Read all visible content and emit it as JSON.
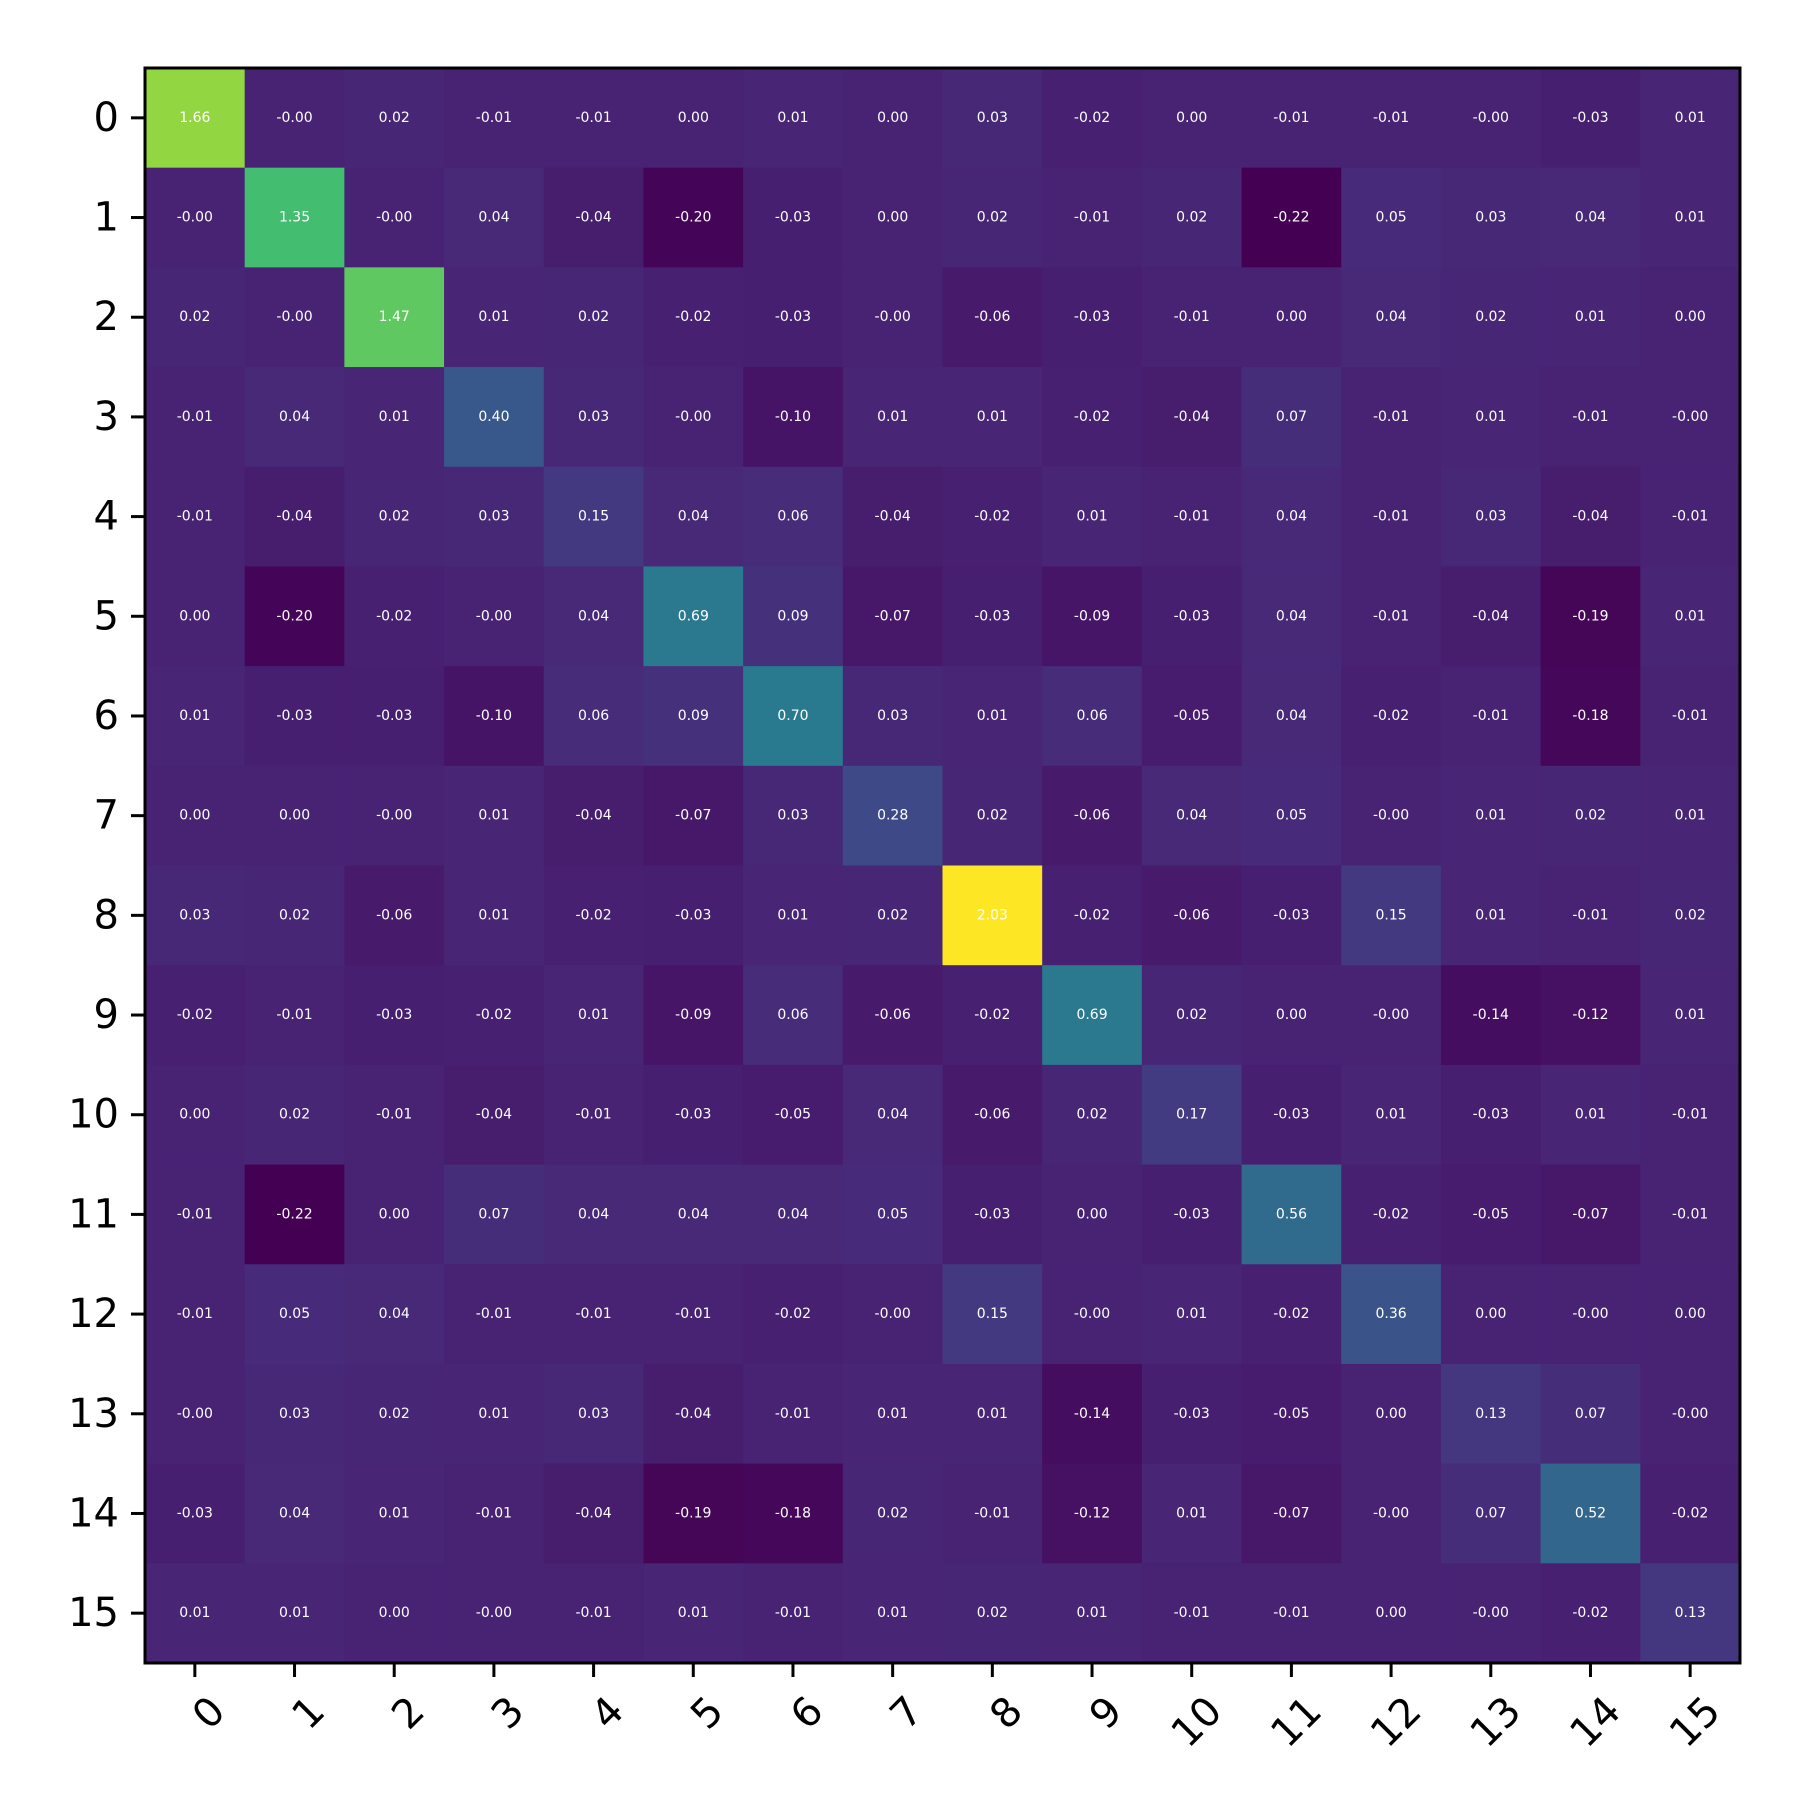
{
  "chart_data": {
    "type": "heatmap",
    "title": "",
    "xlabel": "",
    "ylabel": "",
    "colormap": "viridis",
    "color_range": [
      -0.22,
      2.03
    ],
    "x_labels": [
      "0",
      "1",
      "2",
      "3",
      "4",
      "5",
      "6",
      "7",
      "8",
      "9",
      "10",
      "11",
      "12",
      "13",
      "14",
      "15"
    ],
    "y_labels": [
      "0",
      "1",
      "2",
      "3",
      "4",
      "5",
      "6",
      "7",
      "8",
      "9",
      "10",
      "11",
      "12",
      "13",
      "14",
      "15"
    ],
    "values": [
      [
        1.66,
        -0.0,
        0.02,
        -0.01,
        -0.01,
        0.0,
        0.01,
        0.0,
        0.03,
        -0.02,
        0.0,
        -0.01,
        -0.01,
        -0.0,
        -0.03,
        0.01
      ],
      [
        -0.0,
        1.35,
        -0.0,
        0.04,
        -0.04,
        -0.2,
        -0.03,
        0.0,
        0.02,
        -0.01,
        0.02,
        -0.22,
        0.05,
        0.03,
        0.04,
        0.01
      ],
      [
        0.02,
        -0.0,
        1.47,
        0.01,
        0.02,
        -0.02,
        -0.03,
        -0.0,
        -0.06,
        -0.03,
        -0.01,
        0.0,
        0.04,
        0.02,
        0.01,
        0.0
      ],
      [
        -0.01,
        0.04,
        0.01,
        0.4,
        0.03,
        -0.0,
        -0.1,
        0.01,
        0.01,
        -0.02,
        -0.04,
        0.07,
        -0.01,
        0.01,
        -0.01,
        -0.0
      ],
      [
        -0.01,
        -0.04,
        0.02,
        0.03,
        0.15,
        0.04,
        0.06,
        -0.04,
        -0.02,
        0.01,
        -0.01,
        0.04,
        -0.01,
        0.03,
        -0.04,
        -0.01
      ],
      [
        0.0,
        -0.2,
        -0.02,
        -0.0,
        0.04,
        0.69,
        0.09,
        -0.07,
        -0.03,
        -0.09,
        -0.03,
        0.04,
        -0.01,
        -0.04,
        -0.19,
        0.01
      ],
      [
        0.01,
        -0.03,
        -0.03,
        -0.1,
        0.06,
        0.09,
        0.7,
        0.03,
        0.01,
        0.06,
        -0.05,
        0.04,
        -0.02,
        -0.01,
        -0.18,
        -0.01
      ],
      [
        0.0,
        0.0,
        -0.0,
        0.01,
        -0.04,
        -0.07,
        0.03,
        0.28,
        0.02,
        -0.06,
        0.04,
        0.05,
        -0.0,
        0.01,
        0.02,
        0.01
      ],
      [
        0.03,
        0.02,
        -0.06,
        0.01,
        -0.02,
        -0.03,
        0.01,
        0.02,
        2.03,
        -0.02,
        -0.06,
        -0.03,
        0.15,
        0.01,
        -0.01,
        0.02
      ],
      [
        -0.02,
        -0.01,
        -0.03,
        -0.02,
        0.01,
        -0.09,
        0.06,
        -0.06,
        -0.02,
        0.69,
        0.02,
        0.0,
        -0.0,
        -0.14,
        -0.12,
        0.01
      ],
      [
        0.0,
        0.02,
        -0.01,
        -0.04,
        -0.01,
        -0.03,
        -0.05,
        0.04,
        -0.06,
        0.02,
        0.17,
        -0.03,
        0.01,
        -0.03,
        0.01,
        -0.01
      ],
      [
        -0.01,
        -0.22,
        0.0,
        0.07,
        0.04,
        0.04,
        0.04,
        0.05,
        -0.03,
        0.0,
        -0.03,
        0.56,
        -0.02,
        -0.05,
        -0.07,
        -0.01
      ],
      [
        -0.01,
        0.05,
        0.04,
        -0.01,
        -0.01,
        -0.01,
        -0.02,
        -0.0,
        0.15,
        -0.0,
        0.01,
        -0.02,
        0.36,
        0.0,
        -0.0,
        0.0
      ],
      [
        -0.0,
        0.03,
        0.02,
        0.01,
        0.03,
        -0.04,
        -0.01,
        0.01,
        0.01,
        -0.14,
        -0.03,
        -0.05,
        0.0,
        0.13,
        0.07,
        -0.0
      ],
      [
        -0.03,
        0.04,
        0.01,
        -0.01,
        -0.04,
        -0.19,
        -0.18,
        0.02,
        -0.01,
        -0.12,
        0.01,
        -0.07,
        -0.0,
        0.07,
        0.52,
        -0.02
      ],
      [
        0.01,
        0.01,
        0.0,
        -0.0,
        -0.01,
        0.01,
        -0.01,
        0.01,
        0.02,
        0.01,
        -0.01,
        -0.01,
        0.0,
        -0.0,
        -0.02,
        0.13
      ]
    ],
    "grid": false,
    "legend": "none"
  }
}
